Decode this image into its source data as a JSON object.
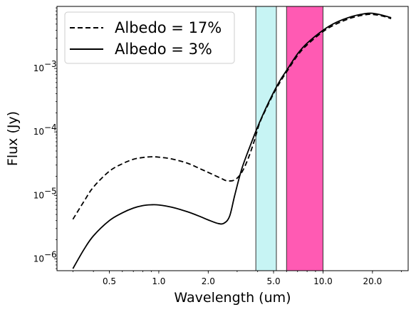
{
  "chart_data": {
    "type": "line",
    "xlabel": "Wavelength (um)",
    "ylabel": "Flux (Jy)",
    "xscale": "log",
    "yscale": "log",
    "xlim": [
      0.24,
      33
    ],
    "ylim": [
      6.5e-07,
      0.0095
    ],
    "x_ticks": [
      {
        "value": 0.5,
        "label": "0.5"
      },
      {
        "value": 1.0,
        "label": "1.0"
      },
      {
        "value": 2.0,
        "label": "2.0"
      },
      {
        "value": 5.0,
        "label": "5.0"
      },
      {
        "value": 10.0,
        "label": "10.0"
      },
      {
        "value": 20.0,
        "label": "20.0"
      }
    ],
    "y_ticks": [
      {
        "value": 1e-06,
        "base": "10",
        "exp": "−6"
      },
      {
        "value": 1e-05,
        "base": "10",
        "exp": "−5"
      },
      {
        "value": 0.0001,
        "base": "10",
        "exp": "−4"
      },
      {
        "value": 0.001,
        "base": "10",
        "exp": "−3"
      }
    ],
    "legend": {
      "position": "upper-left"
    },
    "bands": [
      {
        "x0": 3.9,
        "x1": 5.2,
        "color": "#c7f4f4"
      },
      {
        "x0": 6.0,
        "x1": 10.0,
        "color": "#ff5ab3"
      }
    ],
    "series": [
      {
        "name": "Albedo = 17%",
        "style": "dashed",
        "color": "#000000",
        "points": [
          [
            0.3,
            4.2e-06
          ],
          [
            0.35,
            8e-06
          ],
          [
            0.4,
            1.35e-05
          ],
          [
            0.5,
            2.4e-05
          ],
          [
            0.6,
            3.15e-05
          ],
          [
            0.7,
            3.7e-05
          ],
          [
            0.8,
            3.95e-05
          ],
          [
            0.9,
            4.05e-05
          ],
          [
            1.0,
            4e-05
          ],
          [
            1.2,
            3.75e-05
          ],
          [
            1.5,
            3.2e-05
          ],
          [
            1.8,
            2.6e-05
          ],
          [
            2.0,
            2.3e-05
          ],
          [
            2.4,
            1.85e-05
          ],
          [
            2.6,
            1.7e-05
          ],
          [
            2.9,
            1.75e-05
          ],
          [
            3.2,
            2.3e-05
          ],
          [
            3.5,
            3.8e-05
          ],
          [
            3.8,
            7e-05
          ],
          [
            4.1,
            0.000135
          ],
          [
            4.5,
            0.00023
          ],
          [
            5.0,
            0.0004
          ],
          [
            5.5,
            0.00062
          ],
          [
            6.0,
            0.00088
          ],
          [
            7.0,
            0.0016
          ],
          [
            8.0,
            0.00235
          ],
          [
            10.0,
            0.0038
          ],
          [
            12.0,
            0.005
          ],
          [
            15.0,
            0.0063
          ],
          [
            18.0,
            0.007
          ],
          [
            20.0,
            0.0071
          ],
          [
            23.0,
            0.0067
          ],
          [
            26.0,
            0.0061
          ]
        ]
      },
      {
        "name": "Albedo = 3%",
        "style": "solid",
        "color": "#000000",
        "points": [
          [
            0.3,
            7e-07
          ],
          [
            0.35,
            1.4e-06
          ],
          [
            0.4,
            2.3e-06
          ],
          [
            0.5,
            4e-06
          ],
          [
            0.6,
            5.3e-06
          ],
          [
            0.7,
            6.3e-06
          ],
          [
            0.8,
            6.9e-06
          ],
          [
            0.9,
            7.1e-06
          ],
          [
            1.0,
            7.05e-06
          ],
          [
            1.2,
            6.5e-06
          ],
          [
            1.5,
            5.5e-06
          ],
          [
            1.8,
            4.6e-06
          ],
          [
            2.0,
            4.1e-06
          ],
          [
            2.3,
            3.6e-06
          ],
          [
            2.5,
            3.65e-06
          ],
          [
            2.7,
            4.7e-06
          ],
          [
            2.9,
            1e-05
          ],
          [
            3.2,
            2.6e-05
          ],
          [
            3.6,
            6e-05
          ],
          [
            4.0,
            0.00012
          ],
          [
            4.5,
            0.00024
          ],
          [
            5.0,
            0.00042
          ],
          [
            5.5,
            0.00066
          ],
          [
            6.0,
            0.00093
          ],
          [
            7.0,
            0.0017
          ],
          [
            8.0,
            0.0025
          ],
          [
            10.0,
            0.004
          ],
          [
            12.0,
            0.0053
          ],
          [
            15.0,
            0.0066
          ],
          [
            18.0,
            0.0073
          ],
          [
            20.0,
            0.0074
          ],
          [
            23.0,
            0.0069
          ],
          [
            26.0,
            0.0063
          ]
        ]
      }
    ]
  }
}
